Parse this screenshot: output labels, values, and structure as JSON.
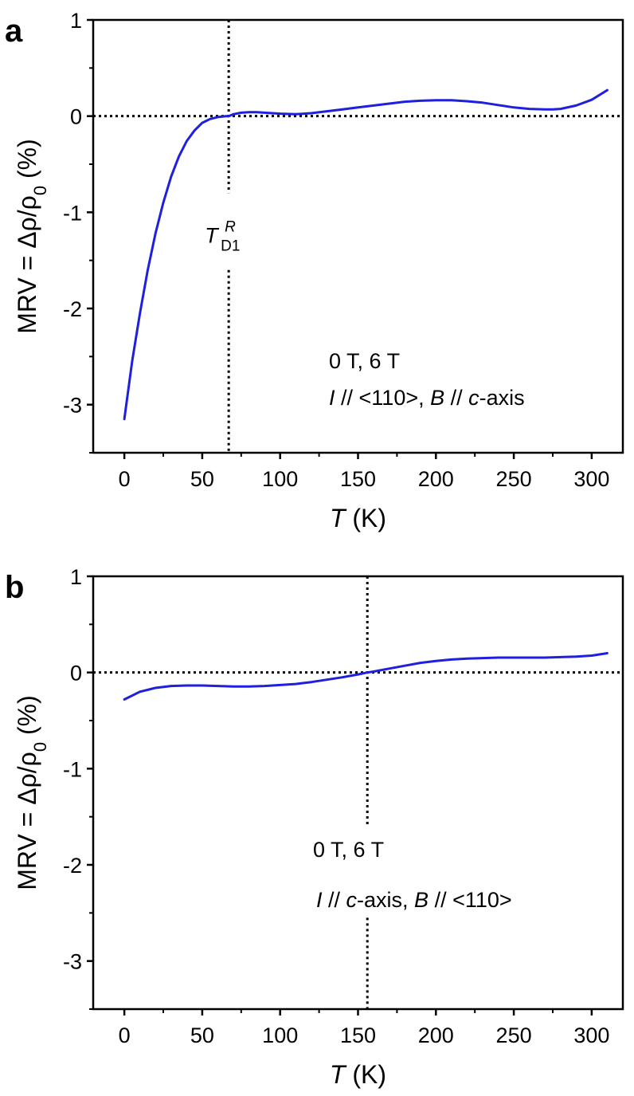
{
  "chart_data": [
    {
      "type": "line",
      "panel_label": "a",
      "xlabel_italic": "T",
      "xlabel_rest": " (K)",
      "ylabel_main": "MRV = Δρ/ρ",
      "ylabel_sub": "0",
      "ylabel_tail": " (%)",
      "xlim": [
        -20,
        320
      ],
      "ylim": [
        -3.5,
        1
      ],
      "xticks": [
        0,
        50,
        100,
        150,
        200,
        250,
        300
      ],
      "xtick_labels": [
        "0",
        "50",
        "100",
        "150",
        "200",
        "250",
        "300"
      ],
      "yticks": [
        1,
        0,
        -1,
        -2,
        -3
      ],
      "ytick_labels": [
        "1",
        "0",
        "-1",
        "-2",
        "-3"
      ],
      "ref_lines": {
        "x": 67,
        "y": 0,
        "x_gap": [
          -1.6,
          -0.8
        ]
      },
      "marker_label": {
        "main": "T",
        "sup": "R",
        "sub": "D1",
        "x": 67,
        "y": -1.25
      },
      "annotations": {
        "line1": "0 T, 6 T",
        "line2": [
          {
            "text": "I",
            "italic": true
          },
          {
            "text": " // <110>, ",
            "italic": false
          },
          {
            "text": "B",
            "italic": true
          },
          {
            "text": " // ",
            "italic": false
          },
          {
            "text": "c",
            "italic": true
          },
          {
            "text": "-axis",
            "italic": false
          }
        ]
      },
      "series": [
        {
          "name": "MRV",
          "color": "#1f1fe0",
          "x": [
            0,
            5,
            10,
            15,
            20,
            25,
            30,
            35,
            40,
            45,
            50,
            55,
            60,
            65,
            67,
            70,
            75,
            80,
            85,
            90,
            100,
            110,
            120,
            130,
            140,
            150,
            160,
            170,
            180,
            190,
            200,
            210,
            220,
            230,
            240,
            250,
            260,
            270,
            275,
            280,
            290,
            300,
            310
          ],
          "y": [
            -3.15,
            -2.55,
            -2.05,
            -1.6,
            -1.22,
            -0.9,
            -0.63,
            -0.42,
            -0.26,
            -0.15,
            -0.07,
            -0.03,
            -0.01,
            0.0,
            0.0,
            0.02,
            0.035,
            0.04,
            0.04,
            0.035,
            0.025,
            0.02,
            0.03,
            0.05,
            0.07,
            0.09,
            0.11,
            0.13,
            0.15,
            0.16,
            0.165,
            0.165,
            0.155,
            0.14,
            0.115,
            0.09,
            0.075,
            0.07,
            0.07,
            0.075,
            0.11,
            0.17,
            0.27
          ]
        }
      ]
    },
    {
      "type": "line",
      "panel_label": "b",
      "xlabel_italic": "T",
      "xlabel_rest": " (K)",
      "ylabel_main": "MRV = Δρ/ρ",
      "ylabel_sub": "0",
      "ylabel_tail": " (%)",
      "xlim": [
        -20,
        320
      ],
      "ylim": [
        -3.5,
        1
      ],
      "xticks": [
        0,
        50,
        100,
        150,
        200,
        250,
        300
      ],
      "xtick_labels": [
        "0",
        "50",
        "100",
        "150",
        "200",
        "250",
        "300"
      ],
      "yticks": [
        1,
        0,
        -1,
        -2,
        -3
      ],
      "ytick_labels": [
        "1",
        "0",
        "-1",
        "-2",
        "-3"
      ],
      "ref_lines": {
        "x": 156,
        "y": 0,
        "x_gap": [
          -2.55,
          -1.6
        ]
      },
      "annotations": {
        "line1": "0 T, 6 T",
        "line2": [
          {
            "text": "I",
            "italic": true
          },
          {
            "text": " // ",
            "italic": false
          },
          {
            "text": "c",
            "italic": true
          },
          {
            "text": "-axis, ",
            "italic": false
          },
          {
            "text": "B",
            "italic": true
          },
          {
            "text": " // <110>",
            "italic": false
          }
        ]
      },
      "series": [
        {
          "name": "MRV",
          "color": "#1f1fe0",
          "x": [
            0,
            10,
            20,
            30,
            40,
            50,
            60,
            70,
            80,
            90,
            100,
            110,
            120,
            130,
            140,
            150,
            156,
            160,
            170,
            180,
            190,
            200,
            210,
            220,
            230,
            240,
            250,
            260,
            270,
            280,
            290,
            300,
            310
          ],
          "y": [
            -0.28,
            -0.2,
            -0.16,
            -0.14,
            -0.135,
            -0.135,
            -0.14,
            -0.145,
            -0.145,
            -0.14,
            -0.13,
            -0.12,
            -0.1,
            -0.075,
            -0.05,
            -0.02,
            0.0,
            0.01,
            0.04,
            0.07,
            0.1,
            0.12,
            0.135,
            0.145,
            0.15,
            0.155,
            0.155,
            0.155,
            0.155,
            0.16,
            0.165,
            0.175,
            0.2
          ]
        }
      ]
    }
  ]
}
